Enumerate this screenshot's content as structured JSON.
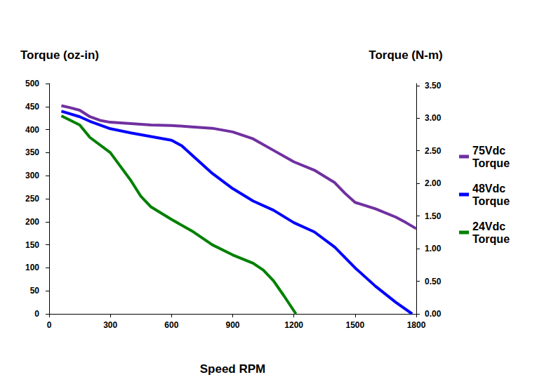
{
  "chart_data": {
    "type": "line",
    "xlabel": "Speed RPM",
    "ylabel": "Torque (oz-in)",
    "y2label": "Torque (N-m)",
    "xlim": [
      0,
      1800
    ],
    "xticks": [
      0,
      300,
      600,
      900,
      1200,
      1500,
      1800
    ],
    "ylim": [
      0,
      500
    ],
    "yticks": [
      0,
      50,
      100,
      150,
      200,
      250,
      300,
      350,
      400,
      450,
      500
    ],
    "y2lim": [
      0,
      3.53
    ],
    "y2ticks": [
      {
        "value": 0,
        "label": "0.00"
      },
      {
        "value": 0.5,
        "label": "0.50"
      },
      {
        "value": 1,
        "label": "1.00"
      },
      {
        "value": 1.5,
        "label": "1.50"
      },
      {
        "value": 2,
        "label": "2.00"
      },
      {
        "value": 2.5,
        "label": "2.50"
      },
      {
        "value": 3,
        "label": "3.00"
      },
      {
        "value": 3.5,
        "label": "3.50"
      }
    ],
    "grid": false,
    "legend": "right",
    "series": [
      {
        "name": "75Vdc Torque",
        "color": "#7030a0",
        "x": [
          60,
          100,
          150,
          200,
          250,
          300,
          400,
          500,
          600,
          700,
          800,
          900,
          1000,
          1100,
          1200,
          1300,
          1400,
          1450,
          1500,
          1600,
          1700,
          1750,
          1800
        ],
        "values": [
          452,
          448,
          442,
          428,
          420,
          416,
          413,
          410,
          409,
          406,
          403,
          395,
          380,
          355,
          330,
          312,
          285,
          262,
          242,
          228,
          210,
          198,
          185
        ]
      },
      {
        "name": "48Vdc Torque",
        "color": "#0000ff",
        "x": [
          60,
          150,
          200,
          300,
          400,
          500,
          600,
          650,
          700,
          800,
          900,
          1000,
          1100,
          1200,
          1300,
          1400,
          1500,
          1600,
          1700,
          1780
        ],
        "values": [
          440,
          428,
          418,
          402,
          393,
          385,
          377,
          365,
          345,
          305,
          272,
          245,
          225,
          198,
          178,
          145,
          100,
          60,
          25,
          0
        ]
      },
      {
        "name": "24Vdc Torque",
        "color": "#008000",
        "x": [
          60,
          150,
          200,
          300,
          350,
          400,
          450,
          500,
          600,
          700,
          800,
          900,
          1000,
          1050,
          1100,
          1150,
          1210
        ],
        "values": [
          430,
          410,
          383,
          350,
          320,
          290,
          255,
          232,
          205,
          180,
          150,
          128,
          110,
          95,
          72,
          40,
          0
        ]
      }
    ]
  }
}
